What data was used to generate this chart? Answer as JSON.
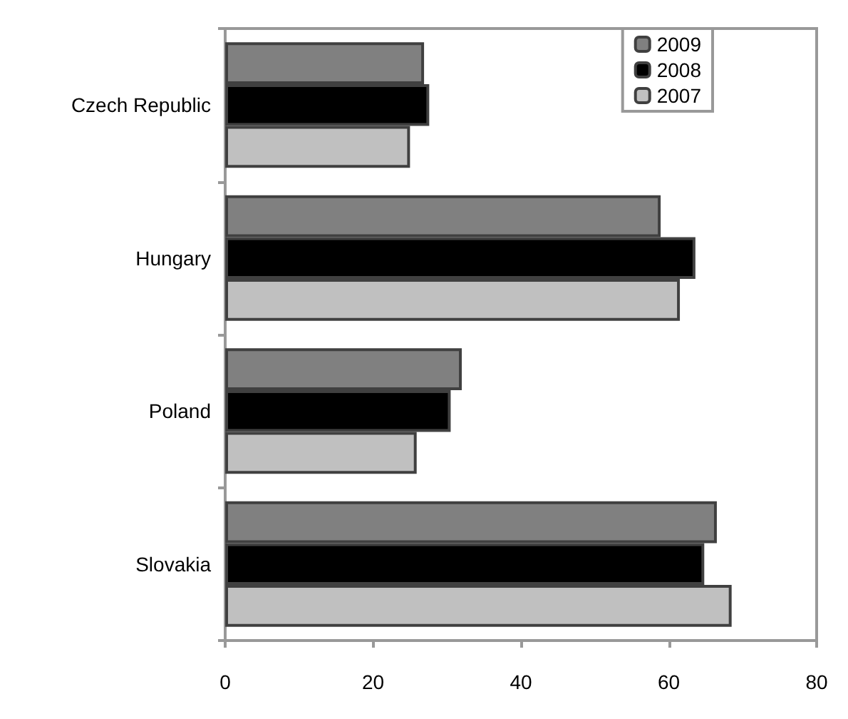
{
  "chart_data": {
    "type": "bar",
    "orientation": "horizontal",
    "categories": [
      "Czech Republic",
      "Hungary",
      "Poland",
      "Slovakia"
    ],
    "series": [
      {
        "name": "2009",
        "color": "#808080",
        "values": [
          26.9,
          58.9,
          32.0,
          66.5
        ]
      },
      {
        "name": "2008",
        "color": "#000000",
        "values": [
          27.6,
          63.6,
          30.5,
          64.8
        ]
      },
      {
        "name": "2007",
        "color": "#c0c0c0",
        "values": [
          25.0,
          61.5,
          25.9,
          68.5
        ]
      }
    ],
    "xlim": [
      0,
      80
    ],
    "xticks": [
      0,
      20,
      40,
      60,
      80
    ],
    "grid": false,
    "legend": "top right"
  }
}
